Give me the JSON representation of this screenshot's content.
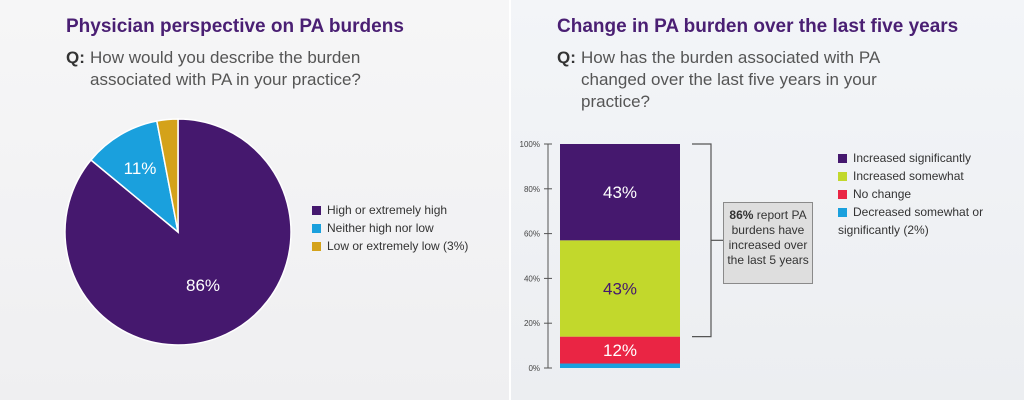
{
  "left": {
    "title": "Physician perspective on PA burdens",
    "q_label": "Q:",
    "question": "How would you describe the burden associated with PA in your practice?"
  },
  "right": {
    "title": "Change in PA burden over the last five years",
    "q_label": "Q:",
    "question": "How has the burden associated with PA changed over the last five years in your practice?",
    "callout_bold": "86%",
    "callout_text": "report PA burdens have increased over the last 5 years"
  },
  "colors": {
    "purple": "#45186e",
    "blue": "#1aa0dd",
    "gold": "#d4a21a",
    "green": "#c2d82c",
    "red": "#ea2544"
  },
  "chart_data": [
    {
      "type": "pie",
      "series": [
        {
          "label": "High or extremely high",
          "value": 86,
          "value_label": "86%",
          "color": "#45186e"
        },
        {
          "label": "Neither high nor low",
          "value": 11,
          "value_label": "11%",
          "color": "#1aa0dd"
        },
        {
          "label": "Low or extremely low (3%)",
          "value": 3,
          "value_label": "",
          "color": "#d4a21a"
        }
      ],
      "legend_position": "right"
    },
    {
      "type": "bar",
      "stacked": true,
      "ylim": [
        0,
        100
      ],
      "yticks": [
        "0%",
        "20%",
        "40%",
        "60%",
        "80%",
        "100%"
      ],
      "series": [
        {
          "name": "Decreased somewhat or significantly (2%)",
          "value": 2,
          "value_label": "",
          "color": "#1aa0dd"
        },
        {
          "name": "No change",
          "value": 12,
          "value_label": "12%",
          "color": "#ea2544"
        },
        {
          "name": "Increased somewhat",
          "value": 43,
          "value_label": "43%",
          "color": "#c2d82c"
        },
        {
          "name": "Increased significantly",
          "value": 43,
          "value_label": "43%",
          "color": "#45186e"
        }
      ],
      "legend": [
        "Increased significantly",
        "Increased somewhat",
        "No change",
        "Decreased somewhat or significantly (2%)"
      ],
      "legend_position": "right"
    }
  ]
}
